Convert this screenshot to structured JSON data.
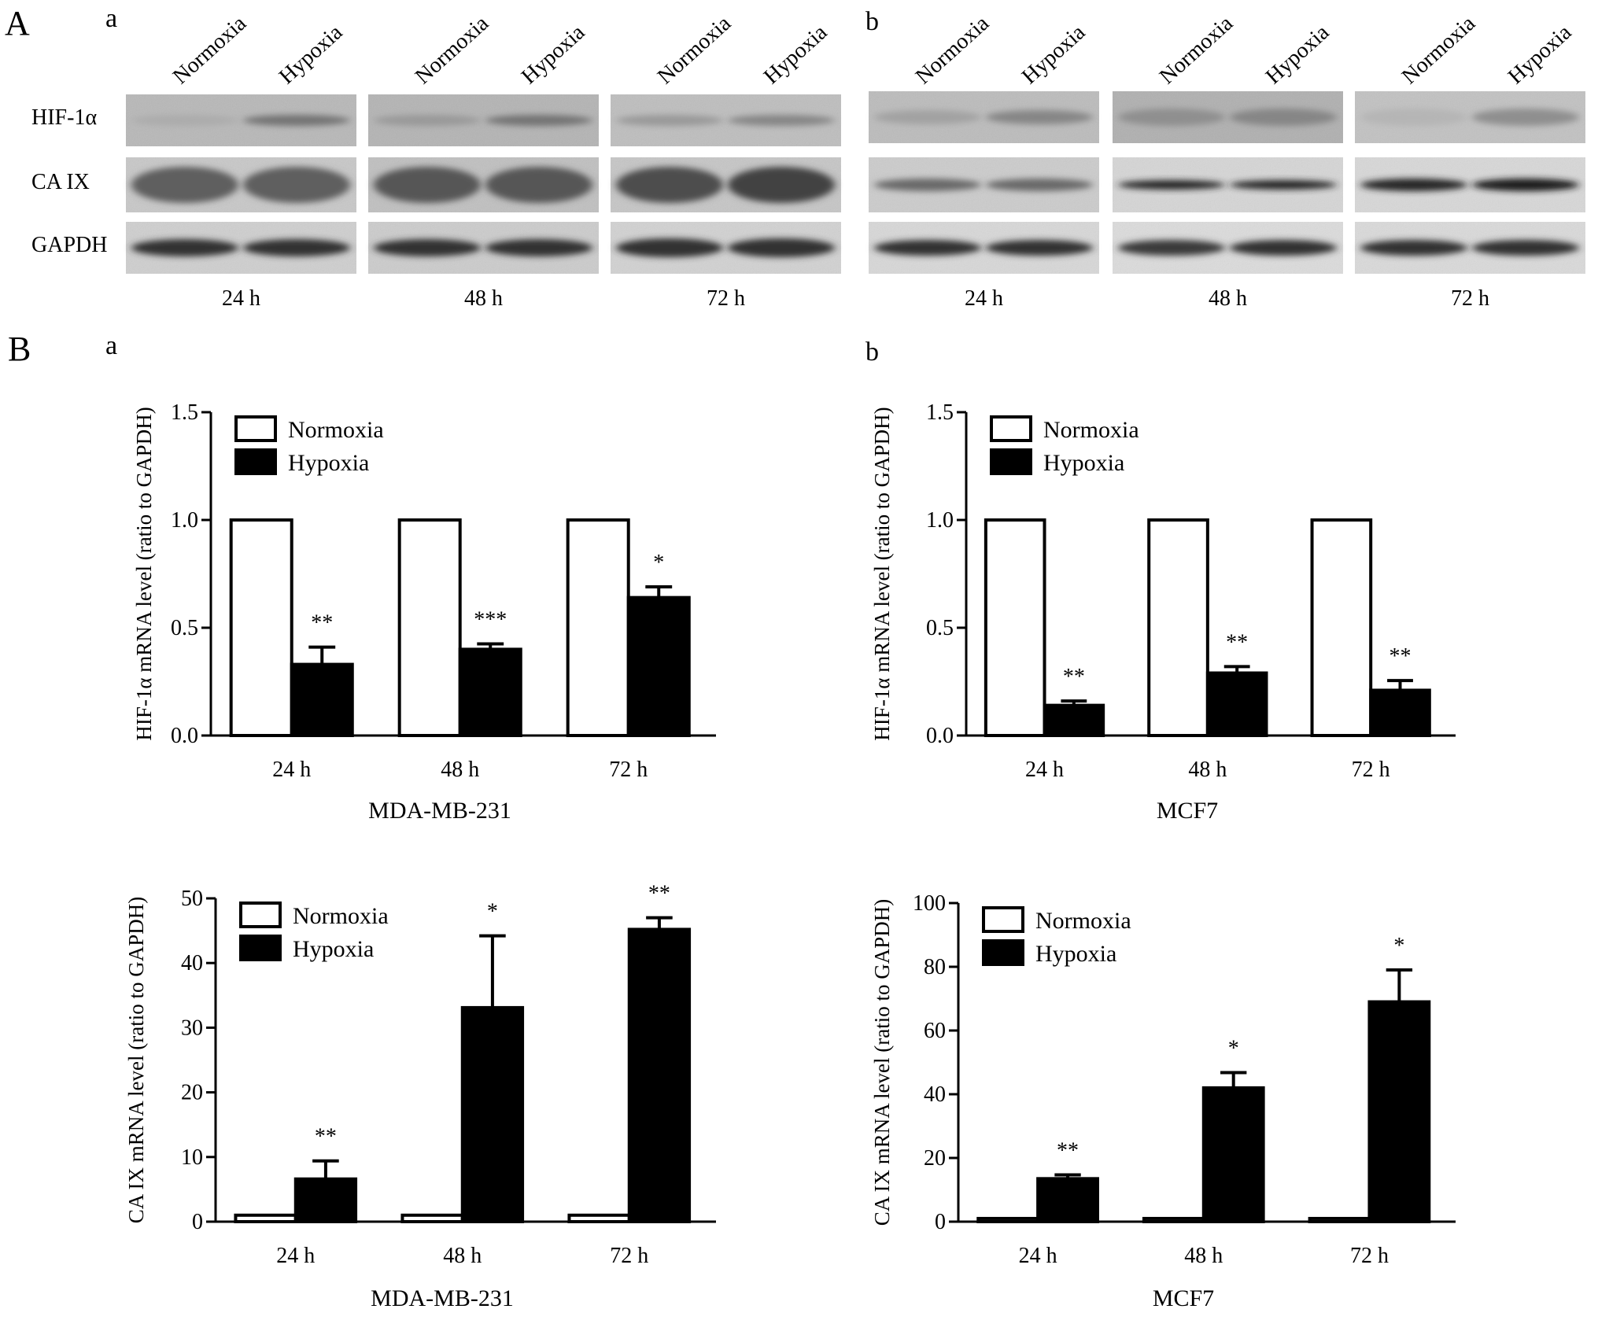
{
  "figure": {
    "panel_A": "A",
    "panel_B": "B",
    "sub_a": "a",
    "sub_b": "b"
  },
  "blots": {
    "conditions": [
      "Normoxia",
      "Hypoxia"
    ],
    "rows": [
      "HIF-1α",
      "CA IX",
      "GAPDH"
    ],
    "times": [
      "24 h",
      "48 h",
      "72 h"
    ]
  },
  "chart_data": [
    {
      "type": "bar",
      "id": "hif_mda",
      "caption": "MDA-MB-231",
      "ylabel": "HIF-1α mRNA level (ratio to GAPDH)",
      "xlabel": "",
      "categories": [
        "24 h",
        "48 h",
        "72 h"
      ],
      "ylim": [
        0,
        1.5
      ],
      "yticks": [
        "0.0",
        "0.5",
        "1.0",
        "1.5"
      ],
      "legend_position": "top-left",
      "series": [
        {
          "name": "Normoxia",
          "values": [
            1.0,
            1.0,
            1.0
          ],
          "errors": [
            0,
            0,
            0
          ],
          "fill": "#ffffff"
        },
        {
          "name": "Hypoxia",
          "values": [
            0.33,
            0.4,
            0.64
          ],
          "errors": [
            0.08,
            0.025,
            0.05
          ],
          "fill": "#000000"
        }
      ],
      "significance": [
        "**",
        "***",
        "*"
      ]
    },
    {
      "type": "bar",
      "id": "hif_mcf7",
      "caption": "MCF7",
      "ylabel": "HIF-1α mRNA level (ratio to GAPDH)",
      "xlabel": "",
      "categories": [
        "24 h",
        "48 h",
        "72 h"
      ],
      "ylim": [
        0,
        1.5
      ],
      "yticks": [
        "0.0",
        "0.5",
        "1.0",
        "1.5"
      ],
      "legend_position": "top-left",
      "series": [
        {
          "name": "Normoxia",
          "values": [
            1.0,
            1.0,
            1.0
          ],
          "errors": [
            0,
            0,
            0
          ],
          "fill": "#ffffff"
        },
        {
          "name": "Hypoxia",
          "values": [
            0.14,
            0.29,
            0.21
          ],
          "errors": [
            0.02,
            0.03,
            0.045
          ],
          "fill": "#000000"
        }
      ],
      "significance": [
        "**",
        "**",
        "**"
      ]
    },
    {
      "type": "bar",
      "id": "ca9_mda",
      "caption": "MDA-MB-231",
      "ylabel": "CA IX mRNA level (ratio to GAPDH)",
      "xlabel": "",
      "categories": [
        "24 h",
        "48 h",
        "72 h"
      ],
      "ylim": [
        0,
        50
      ],
      "yticks": [
        "0",
        "10",
        "20",
        "30",
        "40",
        "50"
      ],
      "legend_position": "top-left",
      "series": [
        {
          "name": "Normoxia",
          "values": [
            1.0,
            1.0,
            1.0
          ],
          "errors": [
            0,
            0,
            0
          ],
          "fill": "#ffffff"
        },
        {
          "name": "Hypoxia",
          "values": [
            6.6,
            33.1,
            45.2
          ],
          "errors": [
            2.8,
            11.1,
            1.8
          ],
          "fill": "#000000"
        }
      ],
      "significance": [
        "**",
        "*",
        "**"
      ]
    },
    {
      "type": "bar",
      "id": "ca9_mcf7",
      "caption": "MCF7",
      "ylabel": "CA IX mRNA level (ratio to GAPDH)",
      "xlabel": "",
      "categories": [
        "24 h",
        "48 h",
        "72 h"
      ],
      "ylim": [
        0,
        100
      ],
      "yticks": [
        "0",
        "20",
        "40",
        "60",
        "80",
        "100"
      ],
      "legend_position": "top-left",
      "series": [
        {
          "name": "Normoxia",
          "values": [
            1.0,
            1.0,
            1.0
          ],
          "errors": [
            0,
            0,
            0
          ],
          "fill": "#ffffff"
        },
        {
          "name": "Hypoxia",
          "values": [
            13.5,
            42.0,
            69.0
          ],
          "errors": [
            1.2,
            4.8,
            10.0
          ],
          "fill": "#000000"
        }
      ],
      "significance": [
        "**",
        "*",
        "*"
      ]
    }
  ]
}
